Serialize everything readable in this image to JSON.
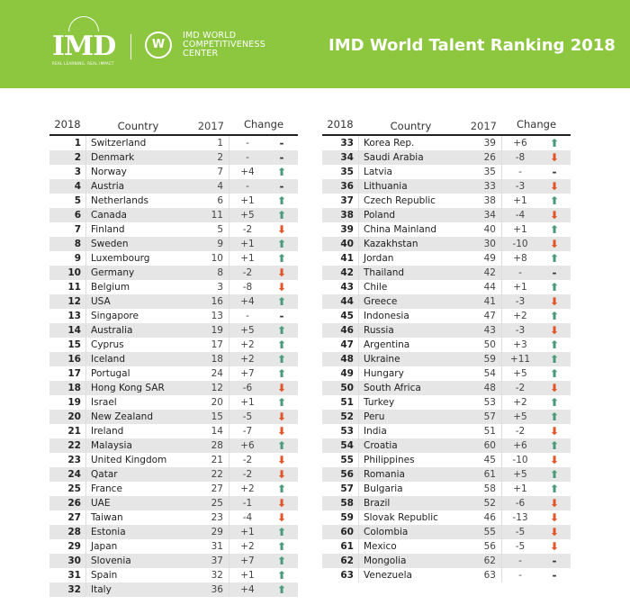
{
  "banner": {
    "logo_text": "IMD",
    "logo_tagline": "REAL LEARNING. REAL IMPACT",
    "center_name_1": "IMD WORLD",
    "center_name_2": "COMPETITIVENESS",
    "center_name_3": "CENTER",
    "title": "IMD World Talent Ranking 2018"
  },
  "headers": {
    "rank": "2018",
    "country": "Country",
    "prev": "2017",
    "change": "Change"
  },
  "colors": {
    "green": "#8dc63f",
    "up": "#4a9a7a",
    "down": "#e0562a"
  },
  "left": {
    "rows": [
      {
        "rank": "1",
        "country": "Switzerland",
        "prev": "1",
        "change": "-",
        "dir": "same"
      },
      {
        "rank": "2",
        "country": "Denmark",
        "prev": "2",
        "change": "-",
        "dir": "same"
      },
      {
        "rank": "3",
        "country": "Norway",
        "prev": "7",
        "change": "+4",
        "dir": "up"
      },
      {
        "rank": "4",
        "country": "Austria",
        "prev": "4",
        "change": "-",
        "dir": "same"
      },
      {
        "rank": "5",
        "country": "Netherlands",
        "prev": "6",
        "change": "+1",
        "dir": "up"
      },
      {
        "rank": "6",
        "country": "Canada",
        "prev": "11",
        "change": "+5",
        "dir": "up"
      },
      {
        "rank": "7",
        "country": "Finland",
        "prev": "5",
        "change": "-2",
        "dir": "down"
      },
      {
        "rank": "8",
        "country": "Sweden",
        "prev": "9",
        "change": "+1",
        "dir": "up"
      },
      {
        "rank": "9",
        "country": "Luxembourg",
        "prev": "10",
        "change": "+1",
        "dir": "up"
      },
      {
        "rank": "10",
        "country": "Germany",
        "prev": "8",
        "change": "-2",
        "dir": "down"
      },
      {
        "rank": "11",
        "country": "Belgium",
        "prev": "3",
        "change": "-8",
        "dir": "down"
      },
      {
        "rank": "12",
        "country": "USA",
        "prev": "16",
        "change": "+4",
        "dir": "up"
      },
      {
        "rank": "13",
        "country": "Singapore",
        "prev": "13",
        "change": "-",
        "dir": "same"
      },
      {
        "rank": "14",
        "country": "Australia",
        "prev": "19",
        "change": "+5",
        "dir": "up"
      },
      {
        "rank": "15",
        "country": "Cyprus",
        "prev": "17",
        "change": "+2",
        "dir": "up"
      },
      {
        "rank": "16",
        "country": "Iceland",
        "prev": "18",
        "change": "+2",
        "dir": "up"
      },
      {
        "rank": "17",
        "country": "Portugal",
        "prev": "24",
        "change": "+7",
        "dir": "up"
      },
      {
        "rank": "18",
        "country": "Hong Kong SAR",
        "prev": "12",
        "change": "-6",
        "dir": "down"
      },
      {
        "rank": "19",
        "country": "Israel",
        "prev": "20",
        "change": "+1",
        "dir": "up"
      },
      {
        "rank": "20",
        "country": "New Zealand",
        "prev": "15",
        "change": "-5",
        "dir": "down"
      },
      {
        "rank": "21",
        "country": "Ireland",
        "prev": "14",
        "change": "-7",
        "dir": "down"
      },
      {
        "rank": "22",
        "country": "Malaysia",
        "prev": "28",
        "change": "+6",
        "dir": "up"
      },
      {
        "rank": "23",
        "country": "United Kingdom",
        "prev": "21",
        "change": "-2",
        "dir": "down"
      },
      {
        "rank": "24",
        "country": "Qatar",
        "prev": "22",
        "change": "-2",
        "dir": "down"
      },
      {
        "rank": "25",
        "country": "France",
        "prev": "27",
        "change": "+2",
        "dir": "up"
      },
      {
        "rank": "26",
        "country": "UAE",
        "prev": "25",
        "change": "-1",
        "dir": "down"
      },
      {
        "rank": "27",
        "country": "Taiwan",
        "prev": "23",
        "change": "-4",
        "dir": "down"
      },
      {
        "rank": "28",
        "country": "Estonia",
        "prev": "29",
        "change": "+1",
        "dir": "up"
      },
      {
        "rank": "29",
        "country": "Japan",
        "prev": "31",
        "change": "+2",
        "dir": "up"
      },
      {
        "rank": "30",
        "country": "Slovenia",
        "prev": "37",
        "change": "+7",
        "dir": "up"
      },
      {
        "rank": "31",
        "country": "Spain",
        "prev": "32",
        "change": "+1",
        "dir": "up"
      },
      {
        "rank": "32",
        "country": "Italy",
        "prev": "36",
        "change": "+4",
        "dir": "up"
      }
    ]
  },
  "right": {
    "rows": [
      {
        "rank": "33",
        "country": "Korea Rep.",
        "prev": "39",
        "change": "+6",
        "dir": "up"
      },
      {
        "rank": "34",
        "country": "Saudi Arabia",
        "prev": "26",
        "change": "-8",
        "dir": "down"
      },
      {
        "rank": "35",
        "country": "Latvia",
        "prev": "35",
        "change": "-",
        "dir": "same"
      },
      {
        "rank": "36",
        "country": "Lithuania",
        "prev": "33",
        "change": "-3",
        "dir": "down"
      },
      {
        "rank": "37",
        "country": "Czech Republic",
        "prev": "38",
        "change": "+1",
        "dir": "up"
      },
      {
        "rank": "38",
        "country": "Poland",
        "prev": "34",
        "change": "-4",
        "dir": "down"
      },
      {
        "rank": "39",
        "country": "China Mainland",
        "prev": "40",
        "change": "+1",
        "dir": "up"
      },
      {
        "rank": "40",
        "country": "Kazakhstan",
        "prev": "30",
        "change": "-10",
        "dir": "down"
      },
      {
        "rank": "41",
        "country": "Jordan",
        "prev": "49",
        "change": "+8",
        "dir": "up"
      },
      {
        "rank": "42",
        "country": "Thailand",
        "prev": "42",
        "change": "-",
        "dir": "same"
      },
      {
        "rank": "43",
        "country": "Chile",
        "prev": "44",
        "change": "+1",
        "dir": "up"
      },
      {
        "rank": "44",
        "country": "Greece",
        "prev": "41",
        "change": "-3",
        "dir": "down"
      },
      {
        "rank": "45",
        "country": "Indonesia",
        "prev": "47",
        "change": "+2",
        "dir": "up"
      },
      {
        "rank": "46",
        "country": "Russia",
        "prev": "43",
        "change": "-3",
        "dir": "down"
      },
      {
        "rank": "47",
        "country": "Argentina",
        "prev": "50",
        "change": "+3",
        "dir": "up"
      },
      {
        "rank": "48",
        "country": "Ukraine",
        "prev": "59",
        "change": "+11",
        "dir": "up"
      },
      {
        "rank": "49",
        "country": "Hungary",
        "prev": "54",
        "change": "+5",
        "dir": "up"
      },
      {
        "rank": "50",
        "country": "South Africa",
        "prev": "48",
        "change": "-2",
        "dir": "down"
      },
      {
        "rank": "51",
        "country": "Turkey",
        "prev": "53",
        "change": "+2",
        "dir": "up"
      },
      {
        "rank": "52",
        "country": "Peru",
        "prev": "57",
        "change": "+5",
        "dir": "up"
      },
      {
        "rank": "53",
        "country": "India",
        "prev": "51",
        "change": "-2",
        "dir": "down"
      },
      {
        "rank": "54",
        "country": "Croatia",
        "prev": "60",
        "change": "+6",
        "dir": "up"
      },
      {
        "rank": "55",
        "country": "Philippines",
        "prev": "45",
        "change": "-10",
        "dir": "down"
      },
      {
        "rank": "56",
        "country": "Romania",
        "prev": "61",
        "change": "+5",
        "dir": "up"
      },
      {
        "rank": "57",
        "country": "Bulgaria",
        "prev": "58",
        "change": "+1",
        "dir": "up"
      },
      {
        "rank": "58",
        "country": "Brazil",
        "prev": "52",
        "change": "-6",
        "dir": "down"
      },
      {
        "rank": "59",
        "country": "Slovak Republic",
        "prev": "46",
        "change": "-13",
        "dir": "down"
      },
      {
        "rank": "60",
        "country": "Colombia",
        "prev": "55",
        "change": "-5",
        "dir": "down"
      },
      {
        "rank": "61",
        "country": "Mexico",
        "prev": "56",
        "change": "-5",
        "dir": "down"
      },
      {
        "rank": "62",
        "country": "Mongolia",
        "prev": "62",
        "change": "-",
        "dir": "same"
      },
      {
        "rank": "63",
        "country": "Venezuela",
        "prev": "63",
        "change": "-",
        "dir": "same"
      }
    ]
  }
}
